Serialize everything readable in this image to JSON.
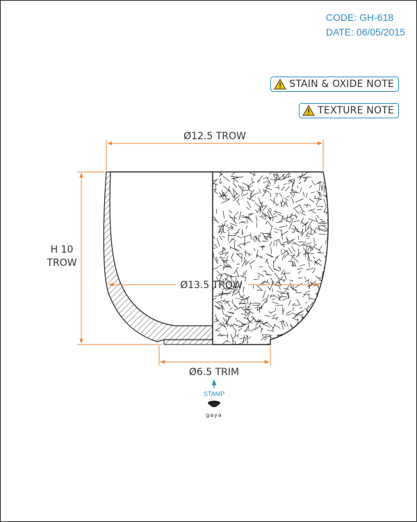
{
  "meta": {
    "code": "CODE: GH-618",
    "date": "DATE: 06/05/2015"
  },
  "notes": [
    {
      "label": "STAIN & OXIDE NOTE",
      "icon": "warning-icon"
    },
    {
      "label": "TEXTURE NOTE",
      "icon": "warning-icon"
    }
  ],
  "dimensions": {
    "top_width": "Ø12.5 TROW",
    "height_line1": "H 10",
    "height_line2": "TROW",
    "belly_width": "Ø13.5 TROW",
    "foot_width": "Ø6.5 TRIM"
  },
  "stamp": {
    "label": "STAMP",
    "brand": "gaya"
  },
  "colors": {
    "dimension_line": "#e8873a",
    "accent": "#2a8fc0",
    "outline": "#222222",
    "warning": "#f2c200"
  }
}
